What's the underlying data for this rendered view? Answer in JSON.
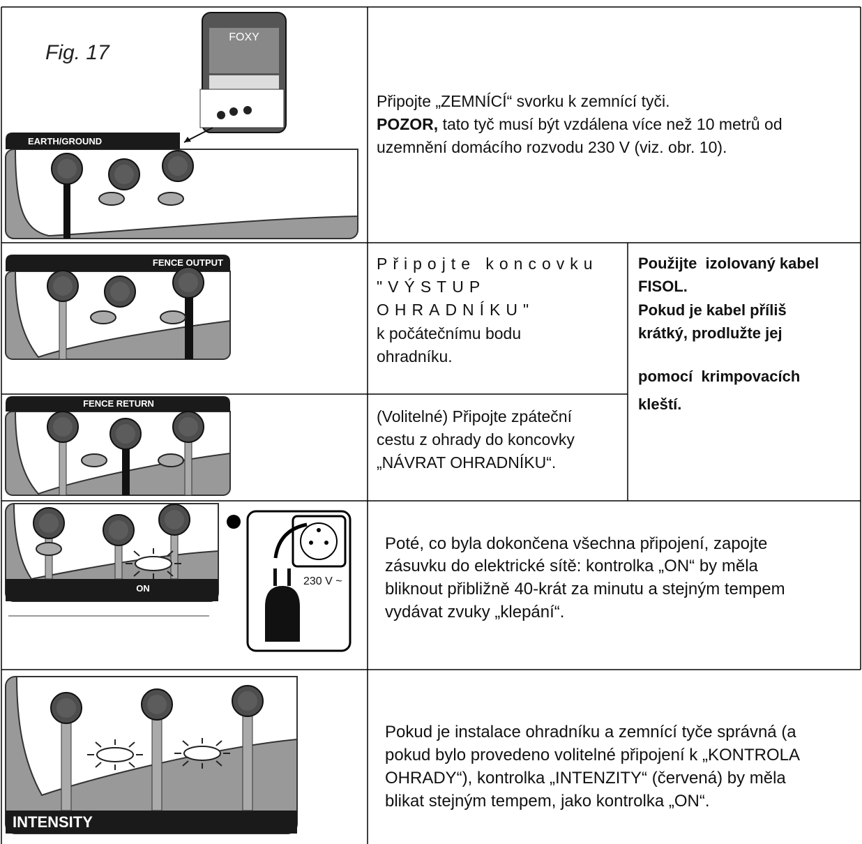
{
  "figure_label": "Fig. 17",
  "device_label": "FOXY",
  "rows": [
    {
      "panel_label": "EARTH/GROUND",
      "text": [
        "Připojte „ZEMNÍCÍ“ svorku k zemnící tyči."
      ],
      "warning_bold": "POZOR,",
      "warning": [
        "tato tyč musí být vzdálena více než 10 metrů od",
        "uzemnění domácího rozvodu 230 V (viz. obr. 10)."
      ]
    },
    {
      "panel_label": "FENCE OUTPUT",
      "text_spaced": [
        "Připojte koncovku",
        "\"VÝSTUP",
        "OHRADNÍKU\""
      ],
      "text": [
        "k počátečnímu bodu",
        "ohradníku."
      ]
    },
    {
      "panel_label": "FENCE RETURN",
      "text": [
        "(Volitelné) Připojte zpáteční",
        "cestu z ohrady do koncovky",
        "„NÁVRAT OHRADNÍKU“."
      ]
    },
    {
      "panel_label": "ON",
      "socket_label": "230 V ~",
      "text": [
        "Poté, co byla dokončena všechna připojení, zapojte",
        "zásuvku do elektrické sítě: kontrolka „ON“ by měla",
        "bliknout přibližně 40-krát za minutu a stejným tempem",
        "vydávat zvuky „klepání“."
      ]
    },
    {
      "panel_label": "INTENSITY",
      "text": [
        "Pokud je instalace ohradníku a zemnící tyče správná (a",
        "pokud bylo provedeno volitelné připojení k „KONTROLA",
        "OHRADY“), kontrolka „INTENZITY“ (červená) by měla",
        "blikat stejným tempem, jako kontrolka „ON“."
      ]
    }
  ],
  "cable_note": [
    "Použijte  izolovaný kabel",
    "FISOL.",
    "Pokud je kabel příliš",
    "krátký, prodlužte jej",
    "pomocí  krimpovacích",
    "kleští."
  ]
}
